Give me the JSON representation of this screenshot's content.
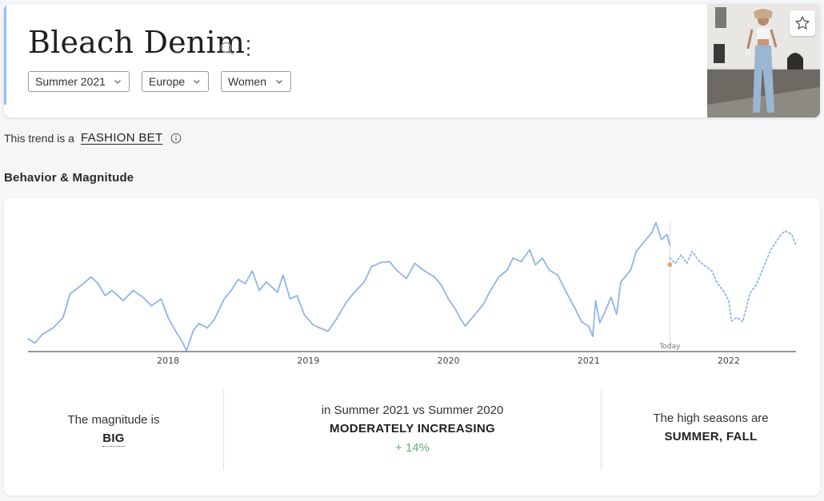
{
  "header": {
    "title": "Bleach Denim",
    "filters": {
      "season": "Summer 2021",
      "region": "Europe",
      "gender": "Women"
    }
  },
  "trend": {
    "prefix": "This trend is a",
    "category": "FASHION BET"
  },
  "section": {
    "title": "Behavior & Magnitude"
  },
  "chart_data": {
    "type": "line",
    "title": "",
    "xlabel": "",
    "ylabel": "",
    "x_ticks": [
      "2018",
      "2019",
      "2020",
      "2021",
      "2022"
    ],
    "today_label": "Today",
    "grid": false,
    "series": [
      {
        "style": "solid",
        "color": "#8db4ec",
        "points": [
          [
            2017.0,
            15
          ],
          [
            2017.05,
            10
          ],
          [
            2017.1,
            20
          ],
          [
            2017.18,
            28
          ],
          [
            2017.25,
            40
          ],
          [
            2017.3,
            68
          ],
          [
            2017.38,
            78
          ],
          [
            2017.45,
            88
          ],
          [
            2017.5,
            80
          ],
          [
            2017.55,
            66
          ],
          [
            2017.6,
            72
          ],
          [
            2017.68,
            60
          ],
          [
            2017.75,
            72
          ],
          [
            2017.82,
            64
          ],
          [
            2017.88,
            54
          ],
          [
            2017.95,
            62
          ],
          [
            2018.0,
            40
          ],
          [
            2018.05,
            25
          ],
          [
            2018.1,
            12
          ],
          [
            2018.13,
            1
          ],
          [
            2018.18,
            25
          ],
          [
            2018.22,
            33
          ],
          [
            2018.28,
            28
          ],
          [
            2018.33,
            38
          ],
          [
            2018.4,
            62
          ],
          [
            2018.45,
            72
          ],
          [
            2018.5,
            85
          ],
          [
            2018.55,
            80
          ],
          [
            2018.6,
            95
          ],
          [
            2018.65,
            72
          ],
          [
            2018.7,
            82
          ],
          [
            2018.78,
            70
          ],
          [
            2018.82,
            90
          ],
          [
            2018.87,
            62
          ],
          [
            2018.92,
            66
          ],
          [
            2018.97,
            44
          ],
          [
            2019.03,
            32
          ],
          [
            2019.08,
            28
          ],
          [
            2019.14,
            24
          ],
          [
            2019.2,
            38
          ],
          [
            2019.27,
            58
          ],
          [
            2019.33,
            70
          ],
          [
            2019.4,
            82
          ],
          [
            2019.45,
            100
          ],
          [
            2019.52,
            105
          ],
          [
            2019.58,
            106
          ],
          [
            2019.63,
            96
          ],
          [
            2019.7,
            86
          ],
          [
            2019.76,
            104
          ],
          [
            2019.82,
            96
          ],
          [
            2019.9,
            88
          ],
          [
            2019.95,
            78
          ],
          [
            2020.0,
            62
          ],
          [
            2020.05,
            50
          ],
          [
            2020.08,
            40
          ],
          [
            2020.12,
            30
          ],
          [
            2020.18,
            42
          ],
          [
            2020.25,
            56
          ],
          [
            2020.3,
            72
          ],
          [
            2020.36,
            88
          ],
          [
            2020.42,
            96
          ],
          [
            2020.46,
            110
          ],
          [
            2020.52,
            106
          ],
          [
            2020.58,
            120
          ],
          [
            2020.62,
            102
          ],
          [
            2020.67,
            110
          ],
          [
            2020.72,
            96
          ],
          [
            2020.78,
            90
          ],
          [
            2020.84,
            70
          ],
          [
            2020.9,
            52
          ],
          [
            2020.95,
            35
          ],
          [
            2021.0,
            30
          ],
          [
            2021.03,
            18
          ],
          [
            2021.05,
            60
          ],
          [
            2021.08,
            34
          ],
          [
            2021.12,
            48
          ],
          [
            2021.16,
            64
          ],
          [
            2021.2,
            44
          ],
          [
            2021.23,
            82
          ],
          [
            2021.3,
            96
          ],
          [
            2021.34,
            118
          ],
          [
            2021.4,
            130
          ],
          [
            2021.45,
            140
          ],
          [
            2021.48,
            152
          ],
          [
            2021.52,
            132
          ],
          [
            2021.56,
            138
          ],
          [
            2021.58,
            125
          ]
        ]
      },
      {
        "style": "dotted",
        "color": "#8db4ec",
        "points": [
          [
            2021.58,
            110
          ],
          [
            2021.62,
            104
          ],
          [
            2021.66,
            114
          ],
          [
            2021.7,
            104
          ],
          [
            2021.74,
            118
          ],
          [
            2021.78,
            108
          ],
          [
            2021.82,
            102
          ],
          [
            2021.88,
            95
          ],
          [
            2021.92,
            80
          ],
          [
            2021.96,
            72
          ],
          [
            2022.0,
            60
          ],
          [
            2022.02,
            36
          ],
          [
            2022.06,
            40
          ],
          [
            2022.1,
            35
          ],
          [
            2022.15,
            68
          ],
          [
            2022.2,
            80
          ],
          [
            2022.25,
            100
          ],
          [
            2022.3,
            120
          ],
          [
            2022.36,
            135
          ],
          [
            2022.4,
            142
          ],
          [
            2022.45,
            138
          ],
          [
            2022.48,
            125
          ]
        ]
      }
    ],
    "today": 2021.58,
    "x_range": [
      2017.0,
      2022.48
    ],
    "y_range": [
      0,
      160
    ]
  },
  "stats": {
    "magnitude_label": "The magnitude is",
    "magnitude_value": "BIG",
    "comparison_label": "in Summer 2021 vs Summer 2020",
    "comparison_value": "MODERATELY INCREASING",
    "comparison_change": "+ 14%",
    "season_label": "The high seasons are",
    "season_value": "SUMMER, FALL"
  },
  "icons": {
    "search": "search-icon",
    "more": "more-vertical-icon",
    "star": "star-icon",
    "info": "info-icon",
    "chevron": "chevron-down-icon"
  }
}
